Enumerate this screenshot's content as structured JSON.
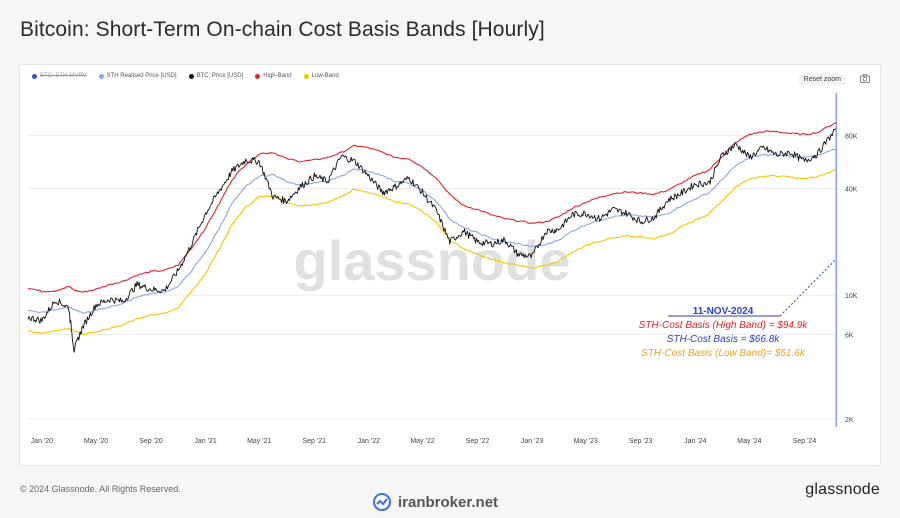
{
  "page": {
    "title": "Bitcoin: Short-Term On-chain Cost Basis Bands [Hourly]",
    "footer": "© 2024 Glassnode. All Rights Reserved.",
    "brand": "glassnode",
    "watermark_center": "glassnode",
    "watermark_bottom": "iranbroker.net",
    "reset_zoom": "Reset zoom"
  },
  "legend": [
    {
      "label": "BTC: STH-MVRV",
      "color": "#3b4fc4",
      "disabled": true
    },
    {
      "label": "STH Realised Price [USD]",
      "color": "#8fa3e8",
      "disabled": false
    },
    {
      "label": "BTC: Price [USD]",
      "color": "#111111",
      "disabled": false
    },
    {
      "label": "High-Band",
      "color": "#e0242b",
      "disabled": false
    },
    {
      "label": "Low-Band",
      "color": "#f5c400",
      "disabled": false
    }
  ],
  "annotation": {
    "date": "11-NOV-2024",
    "high": "STH-Cost Basis (High Band) = $94.9k",
    "mid": "STH-Cost Basis = $66.8k",
    "low": "STH-Cost Basis  (Low Band)= $51.6k",
    "high_color": "#e0242b",
    "mid_color": "#2b3fd0",
    "low_color": "#f0a020"
  },
  "chart_data": {
    "type": "line",
    "y_scale": "log",
    "ylim": [
      1800,
      150000
    ],
    "xlim": [
      "2019-12-01",
      "2024-11-15"
    ],
    "x_ticks": [
      "Jan '20",
      "May '20",
      "Sep '20",
      "Jan '21",
      "May '21",
      "Sep '21",
      "Jan '22",
      "May '22",
      "Sep '22",
      "Jan '23",
      "May '23",
      "Sep '23",
      "Jan '24",
      "May '24",
      "Sep '24"
    ],
    "x_tick_dates": [
      "2020-01-01",
      "2020-05-01",
      "2020-09-01",
      "2021-01-01",
      "2021-05-01",
      "2021-09-01",
      "2022-01-01",
      "2022-05-01",
      "2022-09-01",
      "2023-01-01",
      "2023-05-01",
      "2023-09-01",
      "2024-01-01",
      "2024-05-01",
      "2024-09-01"
    ],
    "y_ticks": [
      {
        "label": "2K",
        "value": 2000
      },
      {
        "label": "6K",
        "value": 6000
      },
      {
        "label": "10K",
        "value": 10000
      },
      {
        "label": "40K",
        "value": 40000
      },
      {
        "label": "80K",
        "value": 80000
      }
    ],
    "dates": [
      "2019-12-01",
      "2020-01-01",
      "2020-02-01",
      "2020-03-01",
      "2020-03-13",
      "2020-04-01",
      "2020-05-01",
      "2020-06-01",
      "2020-07-01",
      "2020-08-01",
      "2020-09-01",
      "2020-10-01",
      "2020-11-01",
      "2020-12-01",
      "2021-01-01",
      "2021-02-01",
      "2021-03-01",
      "2021-04-01",
      "2021-05-01",
      "2021-06-01",
      "2021-07-01",
      "2021-08-01",
      "2021-09-01",
      "2021-10-01",
      "2021-11-01",
      "2021-12-01",
      "2022-01-01",
      "2022-02-01",
      "2022-03-01",
      "2022-04-01",
      "2022-05-01",
      "2022-06-01",
      "2022-07-01",
      "2022-08-01",
      "2022-09-01",
      "2022-10-01",
      "2022-11-01",
      "2022-12-01",
      "2023-01-01",
      "2023-02-01",
      "2023-03-01",
      "2023-04-01",
      "2023-05-01",
      "2023-06-01",
      "2023-07-01",
      "2023-08-01",
      "2023-09-01",
      "2023-10-01",
      "2023-11-01",
      "2023-12-01",
      "2024-01-01",
      "2024-02-01",
      "2024-03-01",
      "2024-04-01",
      "2024-05-01",
      "2024-06-01",
      "2024-07-01",
      "2024-08-01",
      "2024-09-01",
      "2024-10-01",
      "2024-11-11"
    ],
    "series": [
      {
        "name": "BTC: Price [USD]",
        "color": "#111111",
        "values": [
          7500,
          7200,
          9400,
          8500,
          4900,
          6600,
          8800,
          9500,
          9200,
          11500,
          10800,
          10600,
          13800,
          19500,
          29000,
          39000,
          50000,
          58000,
          57000,
          36000,
          34000,
          41000,
          47000,
          44000,
          61000,
          57000,
          47000,
          38000,
          41000,
          46000,
          38000,
          30000,
          20000,
          23000,
          20000,
          19500,
          20500,
          17000,
          16500,
          23000,
          23500,
          28500,
          29000,
          27000,
          30500,
          29000,
          26000,
          27500,
          34500,
          37700,
          42500,
          43000,
          62000,
          71000,
          60000,
          68000,
          62000,
          64000,
          57000,
          63000,
          88000
        ]
      },
      {
        "name": "STH Realised Price [USD]",
        "color": "#8fa3e8",
        "values": [
          8200,
          8000,
          8300,
          8600,
          8300,
          7900,
          8200,
          8600,
          9000,
          9800,
          10200,
          10400,
          11200,
          13800,
          17500,
          24000,
          33000,
          41000,
          47000,
          48000,
          44000,
          42000,
          43000,
          44000,
          47000,
          52000,
          50000,
          47000,
          44000,
          43000,
          39000,
          34000,
          27000,
          24000,
          22500,
          21000,
          20000,
          19500,
          18800,
          19300,
          20500,
          23000,
          25000,
          26500,
          27800,
          28400,
          28000,
          27500,
          29000,
          32000,
          35000,
          38000,
          45000,
          54000,
          60000,
          62000,
          62000,
          61000,
          60000,
          61500,
          66800
        ]
      },
      {
        "name": "High-Band",
        "color": "#e0242b",
        "values": [
          11000,
          10500,
          10600,
          11200,
          10700,
          10400,
          10800,
          11500,
          12000,
          13000,
          13600,
          13800,
          14800,
          18500,
          24000,
          33000,
          45000,
          55000,
          63000,
          64000,
          59000,
          57000,
          58000,
          60000,
          64000,
          70000,
          68000,
          64000,
          60000,
          59000,
          53000,
          46000,
          37000,
          32000,
          30500,
          28500,
          27000,
          26300,
          25500,
          26000,
          27700,
          31000,
          33500,
          35700,
          37500,
          38300,
          37800,
          37200,
          39200,
          43000,
          47500,
          51000,
          61000,
          73000,
          81000,
          84000,
          84000,
          82000,
          81000,
          83000,
          94900
        ]
      },
      {
        "name": "Low-Band",
        "color": "#f5c400",
        "values": [
          6300,
          6100,
          6300,
          6500,
          6300,
          6000,
          6200,
          6500,
          6800,
          7400,
          7700,
          7900,
          8500,
          10500,
          13300,
          18300,
          25000,
          31500,
          36000,
          36500,
          33500,
          32000,
          32600,
          33500,
          36000,
          40000,
          38000,
          36000,
          33500,
          32600,
          29700,
          25800,
          20500,
          18300,
          17100,
          16000,
          15200,
          14800,
          14300,
          14700,
          15600,
          17500,
          19000,
          20200,
          21100,
          21600,
          21300,
          20900,
          22000,
          24300,
          26600,
          28900,
          34200,
          41000,
          45600,
          47100,
          47100,
          46300,
          45600,
          46700,
          51600
        ]
      }
    ]
  }
}
